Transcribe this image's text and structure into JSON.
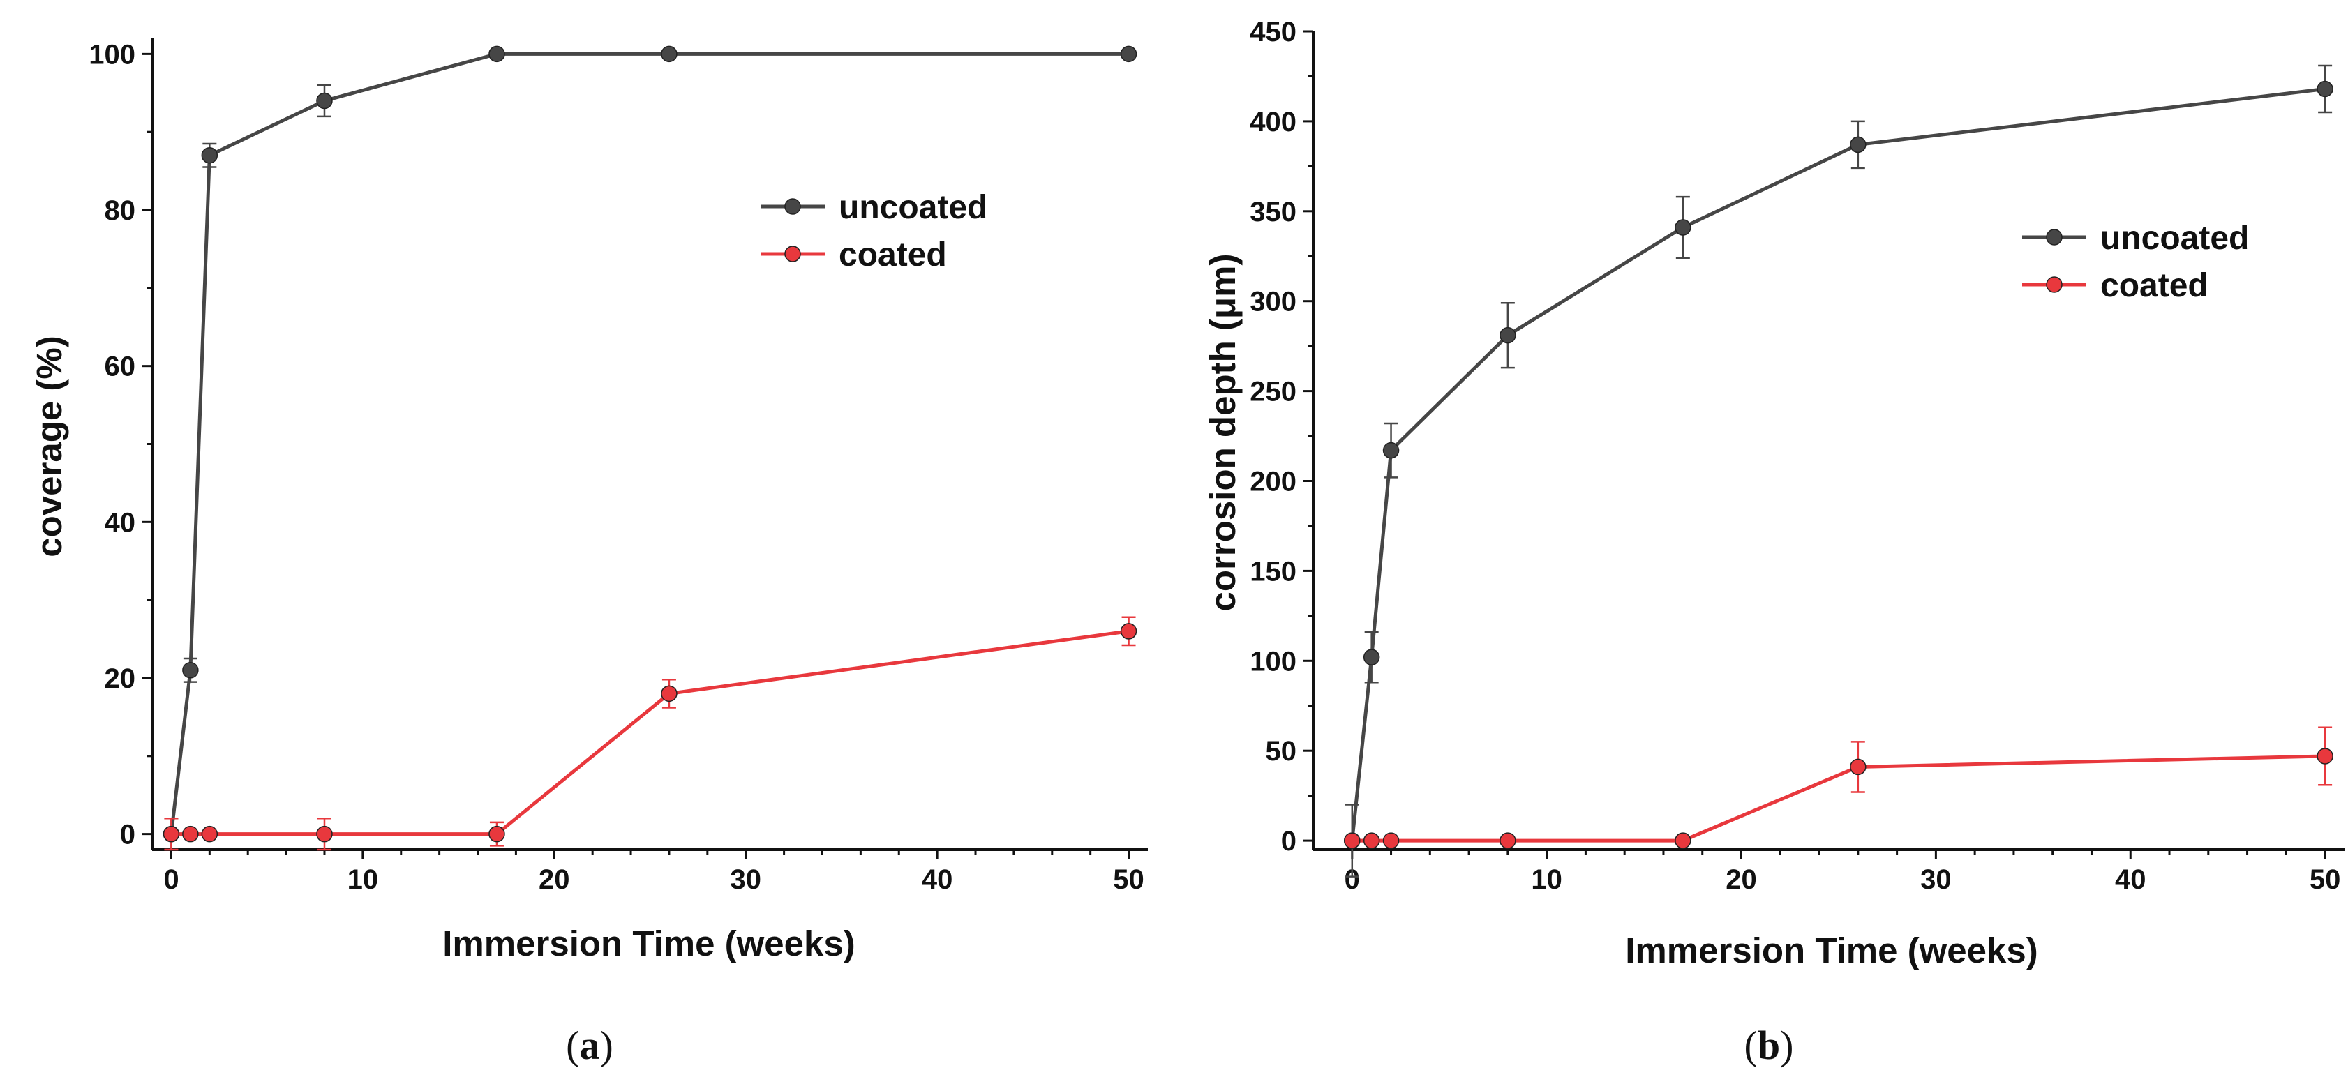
{
  "chart_data": [
    {
      "type": "line",
      "caption_open": "(",
      "caption_letter": "a",
      "caption_close": ")",
      "title": "",
      "xlabel": "Immersion Time (weeks)",
      "ylabel": "coverage (%)",
      "xlim": [
        -1,
        51
      ],
      "ylim": [
        -2,
        102
      ],
      "xticks": [
        0,
        10,
        20,
        30,
        40,
        50
      ],
      "yticks": [
        0,
        20,
        40,
        60,
        80,
        100
      ],
      "legend_position": "upper-right",
      "x": [
        0,
        1,
        2,
        8,
        17,
        26,
        50
      ],
      "series": [
        {
          "name": "uncoated",
          "color": "#464646",
          "values": [
            0,
            21,
            87,
            94,
            100,
            100,
            100
          ],
          "errors": [
            2,
            1.5,
            1.5,
            2,
            0,
            0,
            0
          ]
        },
        {
          "name": "coated",
          "color": "#e8383d",
          "values": [
            0,
            0,
            0,
            0,
            0,
            18,
            26
          ],
          "errors": [
            2,
            0,
            0,
            2,
            1.5,
            1.8,
            1.8
          ]
        }
      ]
    },
    {
      "type": "line",
      "caption_open": "(",
      "caption_letter": "b",
      "caption_close": ")",
      "title": "",
      "xlabel": "Immersion Time (weeks)",
      "ylabel": "corrosion depth (μm)",
      "xlim": [
        -2,
        51
      ],
      "ylim": [
        -5,
        450
      ],
      "xticks": [
        0,
        10,
        20,
        30,
        40,
        50
      ],
      "yticks": [
        0,
        50,
        100,
        150,
        200,
        250,
        300,
        350,
        400,
        450
      ],
      "legend_position": "upper-right",
      "x": [
        0,
        1,
        2,
        8,
        17,
        26,
        50
      ],
      "series": [
        {
          "name": "uncoated",
          "color": "#464646",
          "values": [
            0,
            102,
            217,
            281,
            341,
            387,
            418
          ],
          "errors": [
            20,
            14,
            15,
            18,
            17,
            13,
            13
          ]
        },
        {
          "name": "coated",
          "color": "#e8383d",
          "values": [
            0,
            0,
            0,
            0,
            0,
            41,
            47
          ],
          "errors": [
            0,
            0,
            0,
            0,
            0,
            14,
            16
          ]
        }
      ]
    }
  ]
}
